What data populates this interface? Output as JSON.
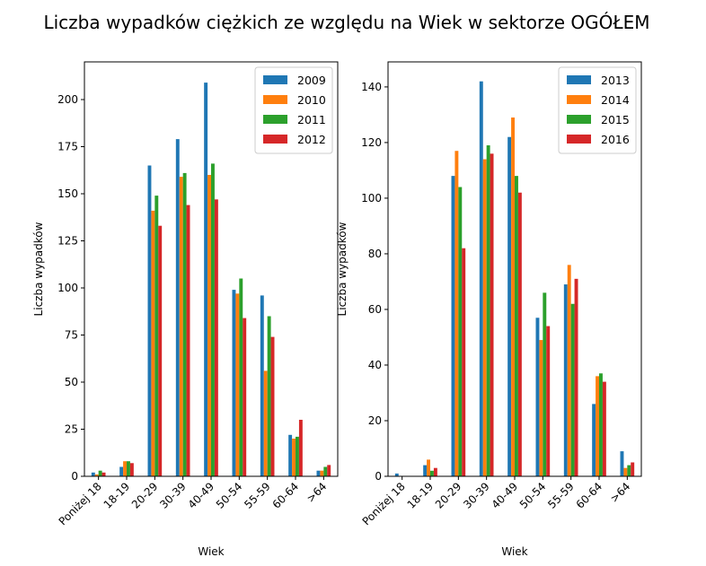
{
  "figure": {
    "suptitle": "Liczba wypadków ciężkich ze względu na Wiek w sektorze OGÓŁEM"
  },
  "chart_data": [
    {
      "type": "bar",
      "xlabel": "Wiek",
      "ylabel": "Liczba wypadków",
      "categories": [
        "Poniżej 18",
        "18-19",
        "20-29",
        "30-39",
        "40-49",
        "50-54",
        "55-59",
        "60-64",
        ">64"
      ],
      "ylim": [
        0,
        220
      ],
      "yticks": [
        0,
        25,
        50,
        75,
        100,
        125,
        150,
        175,
        200
      ],
      "legend_position": "top-right",
      "grid": false,
      "series": [
        {
          "name": "2009",
          "color": "#1f77b4",
          "values": [
            2,
            5,
            165,
            179,
            209,
            99,
            96,
            22,
            3
          ]
        },
        {
          "name": "2010",
          "color": "#ff7f0e",
          "values": [
            1,
            8,
            141,
            159,
            160,
            97,
            56,
            20,
            3
          ]
        },
        {
          "name": "2011",
          "color": "#2ca02c",
          "values": [
            3,
            8,
            149,
            161,
            166,
            105,
            85,
            21,
            5
          ]
        },
        {
          "name": "2012",
          "color": "#d62728",
          "values": [
            2,
            7,
            133,
            144,
            147,
            84,
            74,
            30,
            6
          ]
        }
      ]
    },
    {
      "type": "bar",
      "xlabel": "Wiek",
      "ylabel": "Liczba wypadków",
      "categories": [
        "Poniżej 18",
        "18-19",
        "20-29",
        "30-39",
        "40-49",
        "50-54",
        "55-59",
        "60-64",
        ">64"
      ],
      "ylim": [
        0,
        149
      ],
      "yticks": [
        0,
        20,
        40,
        60,
        80,
        100,
        120,
        140
      ],
      "legend_position": "top-right",
      "grid": false,
      "series": [
        {
          "name": "2013",
          "color": "#1f77b4",
          "values": [
            1,
            4,
            108,
            142,
            122,
            57,
            69,
            26,
            9
          ]
        },
        {
          "name": "2014",
          "color": "#ff7f0e",
          "values": [
            0,
            6,
            117,
            114,
            129,
            49,
            76,
            36,
            3
          ]
        },
        {
          "name": "2015",
          "color": "#2ca02c",
          "values": [
            0,
            2,
            104,
            119,
            108,
            66,
            62,
            37,
            4
          ]
        },
        {
          "name": "2016",
          "color": "#d62728",
          "values": [
            0,
            3,
            82,
            116,
            102,
            54,
            71,
            34,
            5
          ]
        }
      ]
    }
  ]
}
